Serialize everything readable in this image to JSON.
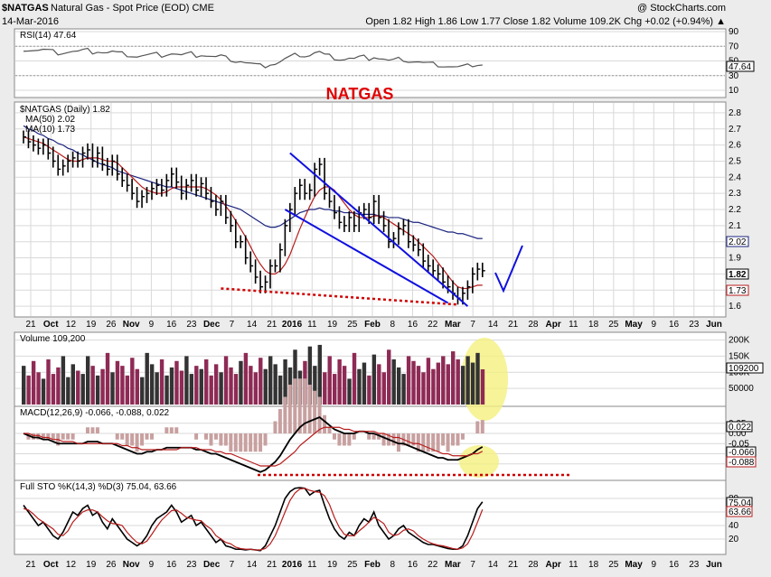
{
  "header": {
    "symbol": "$NATGAS",
    "description": "Natural Gas - Spot Price (EOD) CME",
    "date": "14-Mar-2016",
    "watermark": "@ StockCharts.com",
    "ohlc": "Open 1.82 High 1.86 Low 1.77 Close 1.82 Volume 109.2K Chg +0.02 (+0.94%) ▲"
  },
  "colors": {
    "price_bar": "#000000",
    "ma50": "#1a237e",
    "ma10": "#b71c1c",
    "trendline": "#1010e0",
    "dotted": "#d00000",
    "title": "#e00000",
    "volume_up": "#333333",
    "volume_down": "#8e2a55",
    "highlight": "#f4f080",
    "panel_bg": "#ffffff",
    "grid": "#d9d9d9"
  },
  "annotation": {
    "title": "NATGAS"
  },
  "rsi_panel": {
    "label": "RSI(14) 47.64",
    "current_value": "47.64",
    "ticks": [
      "90",
      "70",
      "50",
      "30",
      "10"
    ]
  },
  "price_panel": {
    "label": "$NATGAS (Daily) 1.82",
    "ma50_label": "MA(50) 2.02",
    "ma10_label": "MA(10) 1.73",
    "current_price": "1.82",
    "ma50_value": "2.02",
    "ma10_value": "1.73",
    "ticks": [
      "2.8",
      "2.7",
      "2.6",
      "2.5",
      "2.4",
      "2.3",
      "2.2",
      "2.1",
      "2.0",
      "1.9",
      "1.8",
      "1.7",
      "1.6"
    ]
  },
  "volume_panel": {
    "label": "Volume 109,200",
    "current_value": "109200",
    "ticks": [
      "200K",
      "150K",
      "100K",
      "50000"
    ]
  },
  "macd_panel": {
    "label": "MACD(12,26,9) -0.066, -0.088, 0.022",
    "hist_value": "0.022",
    "macd_value": "-0.066",
    "signal_value": "-0.088",
    "ticks": [
      "0.05",
      "0.00",
      "-0.05",
      "-0.10",
      "-0.15"
    ]
  },
  "sto_panel": {
    "label": "Full STO %K(14,3) %D(3) 75.04, 63.66",
    "k_value": "75.04",
    "d_value": "63.66",
    "ticks": [
      "80",
      "60",
      "40",
      "20"
    ]
  },
  "x_axis": [
    "21",
    "Oct",
    "12",
    "19",
    "26",
    "Nov",
    "9",
    "16",
    "23",
    "Dec",
    "7",
    "14",
    "21",
    "2016",
    "11",
    "19",
    "25",
    "Feb",
    "8",
    "16",
    "22",
    "Mar",
    "7",
    "14",
    "21",
    "28",
    "Apr",
    "11",
    "18",
    "25",
    "May",
    "9",
    "16",
    "23",
    "Jun"
  ],
  "chart_data": {
    "type": "bar",
    "title": "",
    "ylim": [
      1.55,
      2.85
    ],
    "close": [
      2.65,
      2.62,
      2.6,
      2.58,
      2.6,
      2.55,
      2.5,
      2.45,
      2.47,
      2.5,
      2.52,
      2.5,
      2.55,
      2.57,
      2.5,
      2.55,
      2.48,
      2.45,
      2.5,
      2.42,
      2.38,
      2.35,
      2.3,
      2.25,
      2.28,
      2.3,
      2.33,
      2.35,
      2.32,
      2.38,
      2.42,
      2.37,
      2.3,
      2.35,
      2.38,
      2.32,
      2.36,
      2.3,
      2.25,
      2.2,
      2.25,
      2.15,
      2.1,
      2.0,
      2.0,
      1.9,
      1.85,
      1.78,
      1.72,
      1.75,
      1.85,
      1.85,
      1.95,
      2.1,
      2.2,
      2.3,
      2.35,
      2.3,
      2.32,
      2.45,
      2.48,
      2.3,
      2.25,
      2.18,
      2.12,
      2.1,
      2.15,
      2.1,
      2.18,
      2.2,
      2.15,
      2.25,
      2.15,
      2.1,
      2.0,
      2.02,
      2.08,
      2.1,
      2.0,
      1.98,
      1.95,
      1.88,
      1.85,
      1.82,
      1.8,
      1.75,
      1.72,
      1.68,
      1.65,
      1.68,
      1.72,
      1.8,
      1.83,
      1.82
    ],
    "ma50": [
      2.72,
      2.7,
      2.69,
      2.67,
      2.66,
      2.64,
      2.63,
      2.61,
      2.6,
      2.58,
      2.57,
      2.55,
      2.54,
      2.52,
      2.51,
      2.49,
      2.48,
      2.47,
      2.46,
      2.44,
      2.43,
      2.42,
      2.41,
      2.4,
      2.39,
      2.38,
      2.37,
      2.36,
      2.35,
      2.34,
      2.34,
      2.33,
      2.32,
      2.31,
      2.3,
      2.29,
      2.28,
      2.27,
      2.26,
      2.25,
      2.24,
      2.23,
      2.22,
      2.21,
      2.2,
      2.18,
      2.16,
      2.14,
      2.12,
      2.1,
      2.09,
      2.09,
      2.1,
      2.12,
      2.14,
      2.16,
      2.18,
      2.19,
      2.2,
      2.2,
      2.21,
      2.2,
      2.2,
      2.19,
      2.19,
      2.18,
      2.18,
      2.18,
      2.17,
      2.17,
      2.17,
      2.17,
      2.16,
      2.16,
      2.15,
      2.15,
      2.15,
      2.14,
      2.13,
      2.12,
      2.12,
      2.11,
      2.1,
      2.09,
      2.08,
      2.07,
      2.06,
      2.06,
      2.05,
      2.05,
      2.04,
      2.03,
      2.02,
      2.02
    ],
    "ma10": [
      2.65,
      2.64,
      2.63,
      2.62,
      2.61,
      2.59,
      2.57,
      2.55,
      2.53,
      2.51,
      2.5,
      2.5,
      2.51,
      2.52,
      2.52,
      2.52,
      2.51,
      2.5,
      2.5,
      2.49,
      2.46,
      2.43,
      2.4,
      2.37,
      2.34,
      2.32,
      2.31,
      2.3,
      2.3,
      2.31,
      2.33,
      2.34,
      2.34,
      2.34,
      2.34,
      2.34,
      2.34,
      2.33,
      2.31,
      2.29,
      2.26,
      2.22,
      2.18,
      2.13,
      2.08,
      2.03,
      1.97,
      1.91,
      1.86,
      1.82,
      1.8,
      1.8,
      1.82,
      1.86,
      1.92,
      2.0,
      2.08,
      2.15,
      2.22,
      2.28,
      2.32,
      2.34,
      2.34,
      2.32,
      2.28,
      2.24,
      2.2,
      2.17,
      2.15,
      2.15,
      2.15,
      2.16,
      2.16,
      2.15,
      2.13,
      2.11,
      2.09,
      2.07,
      2.05,
      2.03,
      2.0,
      1.97,
      1.94,
      1.91,
      1.87,
      1.83,
      1.79,
      1.75,
      1.72,
      1.71,
      1.71,
      1.72,
      1.73,
      1.73
    ],
    "volume": [
      120000,
      90000,
      135000,
      100000,
      80000,
      140000,
      95000,
      115000,
      150000,
      85000,
      125000,
      105000,
      95000,
      150000,
      120000,
      90000,
      110000,
      160000,
      100000,
      135000,
      120000,
      90000,
      145000,
      110000,
      85000,
      160000,
      125000,
      100000,
      140000,
      90000,
      115000,
      135000,
      105000,
      150000,
      95000,
      120000,
      110000,
      140000,
      90000,
      125000,
      100000,
      150000,
      115000,
      95000,
      135000,
      160000,
      120000,
      100000,
      145000,
      110000,
      150000,
      125000,
      90000,
      140000,
      115000,
      170000,
      105000,
      135000,
      180000,
      120000,
      185000,
      100000,
      150000,
      95000,
      140000,
      120000,
      80000,
      160000,
      110000,
      130000,
      90000,
      155000,
      125000,
      100000,
      170000,
      140000,
      115000,
      95000,
      150000,
      135000,
      120000,
      100000,
      145000,
      110000,
      130000,
      150000,
      125000,
      165000,
      140000,
      120000,
      150000,
      130000,
      160000,
      109200
    ],
    "macd": [
      0.0,
      -0.01,
      -0.02,
      -0.02,
      -0.03,
      -0.03,
      -0.04,
      -0.05,
      -0.05,
      -0.05,
      -0.05,
      -0.05,
      -0.05,
      -0.04,
      -0.04,
      -0.04,
      -0.05,
      -0.05,
      -0.05,
      -0.06,
      -0.07,
      -0.08,
      -0.09,
      -0.1,
      -0.1,
      -0.09,
      -0.09,
      -0.08,
      -0.08,
      -0.07,
      -0.07,
      -0.07,
      -0.07,
      -0.07,
      -0.07,
      -0.08,
      -0.08,
      -0.09,
      -0.1,
      -0.1,
      -0.11,
      -0.12,
      -0.13,
      -0.14,
      -0.15,
      -0.16,
      -0.17,
      -0.18,
      -0.19,
      -0.18,
      -0.16,
      -0.14,
      -0.11,
      -0.07,
      -0.03,
      0.0,
      0.03,
      0.05,
      0.06,
      0.07,
      0.08,
      0.06,
      0.04,
      0.02,
      0.01,
      0.0,
      0.0,
      0.0,
      0.01,
      0.01,
      0.0,
      0.0,
      -0.01,
      -0.02,
      -0.03,
      -0.04,
      -0.05,
      -0.05,
      -0.06,
      -0.07,
      -0.08,
      -0.09,
      -0.1,
      -0.11,
      -0.12,
      -0.12,
      -0.13,
      -0.13,
      -0.13,
      -0.12,
      -0.11,
      -0.1,
      -0.08,
      -0.066
    ],
    "signal": [
      0.0,
      0.0,
      -0.01,
      -0.01,
      -0.02,
      -0.02,
      -0.03,
      -0.03,
      -0.04,
      -0.04,
      -0.04,
      -0.05,
      -0.05,
      -0.05,
      -0.05,
      -0.05,
      -0.05,
      -0.05,
      -0.05,
      -0.05,
      -0.06,
      -0.06,
      -0.07,
      -0.07,
      -0.08,
      -0.08,
      -0.08,
      -0.08,
      -0.08,
      -0.08,
      -0.08,
      -0.08,
      -0.07,
      -0.07,
      -0.07,
      -0.07,
      -0.08,
      -0.08,
      -0.08,
      -0.09,
      -0.09,
      -0.1,
      -0.1,
      -0.11,
      -0.12,
      -0.13,
      -0.14,
      -0.15,
      -0.16,
      -0.16,
      -0.16,
      -0.16,
      -0.15,
      -0.13,
      -0.11,
      -0.09,
      -0.06,
      -0.04,
      -0.02,
      0.0,
      0.02,
      0.03,
      0.03,
      0.03,
      0.03,
      0.02,
      0.02,
      0.01,
      0.01,
      0.01,
      0.01,
      0.01,
      0.0,
      0.0,
      -0.01,
      -0.02,
      -0.02,
      -0.03,
      -0.04,
      -0.05,
      -0.05,
      -0.06,
      -0.07,
      -0.08,
      -0.09,
      -0.1,
      -0.1,
      -0.11,
      -0.11,
      -0.11,
      -0.11,
      -0.1,
      -0.1,
      -0.088
    ],
    "sto_k": [
      70,
      60,
      50,
      40,
      45,
      35,
      25,
      20,
      30,
      45,
      60,
      55,
      65,
      70,
      55,
      60,
      45,
      35,
      50,
      40,
      30,
      20,
      15,
      10,
      15,
      25,
      40,
      50,
      55,
      60,
      70,
      60,
      45,
      50,
      55,
      40,
      45,
      35,
      25,
      15,
      20,
      10,
      8,
      5,
      5,
      4,
      5,
      4,
      3,
      10,
      25,
      40,
      60,
      80,
      90,
      95,
      96,
      95,
      85,
      90,
      92,
      70,
      50,
      35,
      25,
      20,
      30,
      25,
      40,
      50,
      45,
      60,
      40,
      30,
      20,
      25,
      35,
      40,
      30,
      25,
      20,
      15,
      12,
      12,
      10,
      8,
      6,
      5,
      5,
      10,
      25,
      45,
      65,
      75.04
    ],
    "sto_d": [
      65,
      63,
      57,
      50,
      45,
      40,
      35,
      27,
      25,
      32,
      45,
      53,
      60,
      63,
      63,
      60,
      53,
      47,
      43,
      42,
      40,
      30,
      22,
      15,
      13,
      17,
      27,
      38,
      48,
      55,
      62,
      63,
      58,
      52,
      50,
      48,
      47,
      40,
      35,
      25,
      20,
      15,
      13,
      8,
      6,
      5,
      5,
      4,
      4,
      6,
      13,
      25,
      42,
      60,
      77,
      88,
      94,
      95,
      92,
      90,
      89,
      84,
      71,
      52,
      37,
      27,
      25,
      25,
      32,
      38,
      45,
      52,
      48,
      43,
      30,
      25,
      27,
      33,
      35,
      32,
      25,
      20,
      16,
      13,
      11,
      10,
      8,
      6,
      5,
      7,
      13,
      27,
      45,
      63.66
    ],
    "trendline_upper": {
      "from": [
        54,
        2.55
      ],
      "to": [
        90,
        1.6
      ]
    },
    "trendline_lower": {
      "from": [
        53,
        2.2
      ],
      "to": [
        86,
        1.62
      ]
    },
    "dotted_support": {
      "from": [
        40,
        1.71
      ],
      "to": [
        88,
        1.61
      ]
    }
  }
}
